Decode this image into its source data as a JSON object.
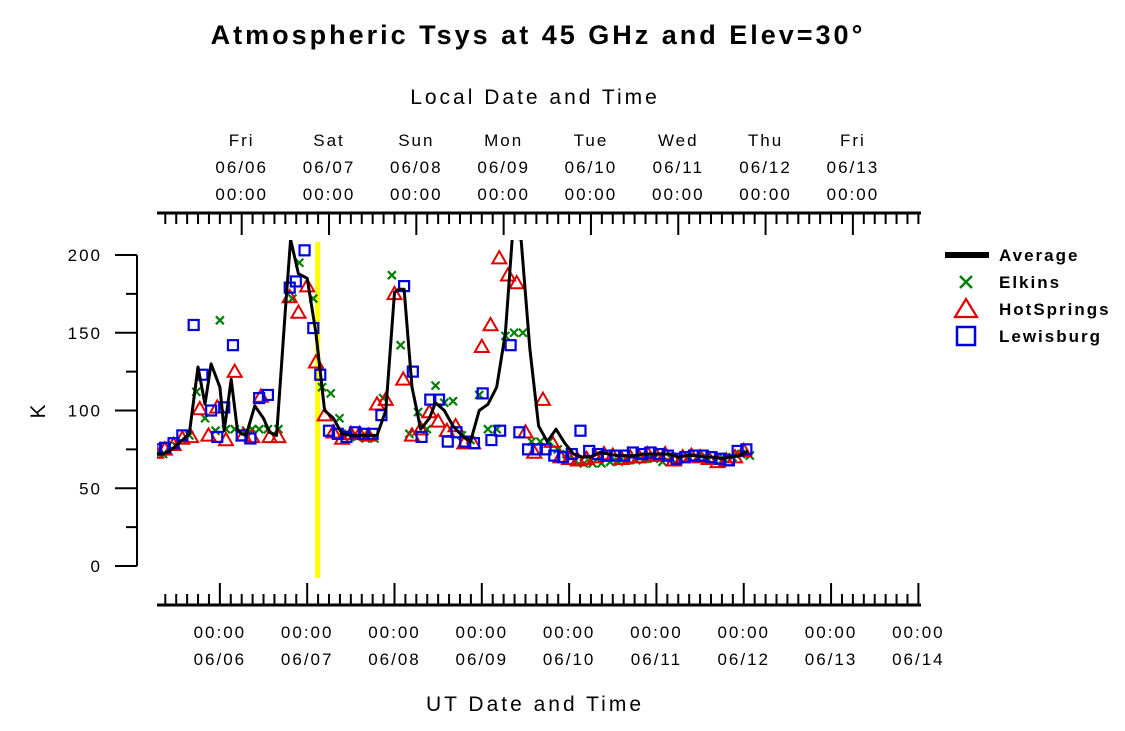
{
  "chart_data": {
    "type": "line",
    "title": "Atmospheric Tsys at 45 GHz and Elev=30°",
    "top_axis_title": "Local Date and Time",
    "xlabel": "UT Date and Time",
    "ylabel": "K",
    "ylim": [
      0,
      200
    ],
    "y_ticks": [
      0,
      50,
      100,
      150,
      200
    ],
    "xlim_ut_days": [
      5.03,
      13.78
    ],
    "top_axis_ticks": [
      {
        "day": "Fri",
        "date": "06/06",
        "time": "00:00",
        "ut_day": 6.0
      },
      {
        "day": "Sat",
        "date": "06/07",
        "time": "00:00",
        "ut_day": 7.0
      },
      {
        "day": "Sun",
        "date": "06/08",
        "time": "00:00",
        "ut_day": 8.0
      },
      {
        "day": "Mon",
        "date": "06/09",
        "time": "00:00",
        "ut_day": 9.0
      },
      {
        "day": "Tue",
        "date": "06/10",
        "time": "00:00",
        "ut_day": 10.0
      },
      {
        "day": "Wed",
        "date": "06/11",
        "time": "00:00",
        "ut_day": 11.0
      },
      {
        "day": "Thu",
        "date": "06/12",
        "time": "00:00",
        "ut_day": 12.0
      },
      {
        "day": "Fri",
        "date": "06/13",
        "time": "00:00",
        "ut_day": 13.0
      }
    ],
    "bottom_axis_ticks": [
      {
        "time": "00:00",
        "date": "06/06",
        "ut_day": 5.75
      },
      {
        "time": "00:00",
        "date": "06/07",
        "ut_day": 6.75
      },
      {
        "time": "00:00",
        "date": "06/08",
        "ut_day": 7.75
      },
      {
        "time": "00:00",
        "date": "06/09",
        "ut_day": 8.75
      },
      {
        "time": "00:00",
        "date": "06/10",
        "ut_day": 9.75
      },
      {
        "time": "00:00",
        "date": "06/11",
        "ut_day": 10.75
      },
      {
        "time": "00:00",
        "date": "06/12",
        "ut_day": 11.75
      },
      {
        "time": "00:00",
        "date": "06/13",
        "ut_day": 12.75
      },
      {
        "time": "00:00",
        "date": "06/14",
        "ut_day": 13.75
      }
    ],
    "marker_line_ut_day": 6.87,
    "legend_position": "right",
    "series": [
      {
        "name": "Average",
        "marker": "line",
        "color": "#000000",
        "points": [
          [
            5.0,
            72
          ],
          [
            5.1,
            72
          ],
          [
            5.2,
            75
          ],
          [
            5.3,
            80
          ],
          [
            5.4,
            85
          ],
          [
            5.5,
            128
          ],
          [
            5.58,
            104
          ],
          [
            5.65,
            130
          ],
          [
            5.75,
            115
          ],
          [
            5.8,
            87
          ],
          [
            5.88,
            120
          ],
          [
            5.95,
            88
          ],
          [
            6.0,
            85
          ],
          [
            6.05,
            84
          ],
          [
            6.15,
            103
          ],
          [
            6.25,
            95
          ],
          [
            6.32,
            86
          ],
          [
            6.4,
            84
          ],
          [
            6.5,
            165
          ],
          [
            6.56,
            210
          ],
          [
            6.65,
            188
          ],
          [
            6.75,
            185
          ],
          [
            6.85,
            150
          ],
          [
            6.95,
            100
          ],
          [
            7.05,
            95
          ],
          [
            7.15,
            85
          ],
          [
            7.25,
            84
          ],
          [
            7.35,
            84
          ],
          [
            7.45,
            84
          ],
          [
            7.55,
            84
          ],
          [
            7.65,
            100
          ],
          [
            7.75,
            176
          ],
          [
            7.8,
            178
          ],
          [
            7.86,
            178
          ],
          [
            7.95,
            115
          ],
          [
            8.05,
            88
          ],
          [
            8.15,
            95
          ],
          [
            8.22,
            105
          ],
          [
            8.32,
            100
          ],
          [
            8.42,
            90
          ],
          [
            8.52,
            84
          ],
          [
            8.62,
            80
          ],
          [
            8.72,
            100
          ],
          [
            8.82,
            104
          ],
          [
            8.92,
            115
          ],
          [
            9.02,
            150
          ],
          [
            9.1,
            212
          ],
          [
            9.2,
            210
          ],
          [
            9.3,
            140
          ],
          [
            9.4,
            90
          ],
          [
            9.5,
            80
          ],
          [
            9.6,
            88
          ],
          [
            9.7,
            79
          ],
          [
            9.8,
            72
          ],
          [
            9.9,
            70
          ],
          [
            10.0,
            70
          ],
          [
            10.1,
            73
          ],
          [
            10.2,
            72
          ],
          [
            10.3,
            71
          ],
          [
            10.4,
            71
          ],
          [
            10.5,
            71
          ],
          [
            10.6,
            72
          ],
          [
            10.7,
            72
          ],
          [
            10.8,
            72
          ],
          [
            10.9,
            72
          ],
          [
            11.0,
            70
          ],
          [
            11.1,
            71
          ],
          [
            11.2,
            71
          ],
          [
            11.3,
            70
          ],
          [
            11.4,
            70
          ],
          [
            11.5,
            69
          ],
          [
            11.6,
            70
          ],
          [
            11.7,
            71
          ],
          [
            11.8,
            74
          ]
        ]
      },
      {
        "name": "Elkins",
        "marker": "x",
        "color": "#008000",
        "points": [
          [
            5.0,
            72
          ],
          [
            5.05,
            72
          ],
          [
            5.1,
            72
          ],
          [
            5.25,
            77
          ],
          [
            5.4,
            84
          ],
          [
            5.48,
            112
          ],
          [
            5.58,
            95
          ],
          [
            5.7,
            87
          ],
          [
            5.75,
            158
          ],
          [
            5.82,
            88
          ],
          [
            5.92,
            88
          ],
          [
            6.05,
            87
          ],
          [
            6.12,
            88
          ],
          [
            6.2,
            88
          ],
          [
            6.3,
            88
          ],
          [
            6.42,
            88
          ],
          [
            6.58,
            172
          ],
          [
            6.66,
            195
          ],
          [
            6.82,
            172
          ],
          [
            6.92,
            115
          ],
          [
            7.02,
            111
          ],
          [
            7.12,
            95
          ],
          [
            7.22,
            85
          ],
          [
            7.32,
            83
          ],
          [
            7.42,
            82
          ],
          [
            7.52,
            82
          ],
          [
            7.62,
            108
          ],
          [
            7.72,
            187
          ],
          [
            7.82,
            142
          ],
          [
            7.92,
            85
          ],
          [
            8.02,
            99
          ],
          [
            8.12,
            88
          ],
          [
            8.22,
            116
          ],
          [
            8.32,
            105
          ],
          [
            8.42,
            106
          ],
          [
            8.52,
            84
          ],
          [
            8.62,
            81
          ],
          [
            8.72,
            110
          ],
          [
            8.82,
            88
          ],
          [
            8.92,
            88
          ],
          [
            9.02,
            148
          ],
          [
            9.12,
            150
          ],
          [
            9.22,
            150
          ],
          [
            9.32,
            80
          ],
          [
            9.42,
            80
          ],
          [
            9.52,
            80
          ],
          [
            9.62,
            75
          ],
          [
            9.72,
            72
          ],
          [
            9.82,
            68
          ],
          [
            9.92,
            66
          ],
          [
            10.02,
            66
          ],
          [
            10.12,
            66
          ],
          [
            10.22,
            67
          ],
          [
            10.32,
            67
          ],
          [
            10.42,
            68
          ],
          [
            10.52,
            68
          ],
          [
            10.62,
            69
          ],
          [
            10.72,
            69
          ],
          [
            10.82,
            67
          ],
          [
            10.92,
            69
          ],
          [
            11.02,
            69
          ],
          [
            11.12,
            70
          ],
          [
            11.22,
            70
          ],
          [
            11.32,
            70
          ],
          [
            11.42,
            68
          ],
          [
            11.52,
            69
          ],
          [
            11.62,
            70
          ],
          [
            11.72,
            72
          ],
          [
            11.82,
            71
          ]
        ]
      },
      {
        "name": "HotSprings",
        "marker": "triangle",
        "color": "#e00000",
        "points": [
          [
            5.02,
            73
          ],
          [
            5.12,
            75
          ],
          [
            5.22,
            78
          ],
          [
            5.32,
            82
          ],
          [
            5.42,
            83
          ],
          [
            5.52,
            101
          ],
          [
            5.62,
            84
          ],
          [
            5.72,
            102
          ],
          [
            5.82,
            81
          ],
          [
            5.92,
            125
          ],
          [
            6.02,
            84
          ],
          [
            6.12,
            83
          ],
          [
            6.22,
            109
          ],
          [
            6.32,
            83
          ],
          [
            6.42,
            83
          ],
          [
            6.55,
            173
          ],
          [
            6.65,
            163
          ],
          [
            6.75,
            180
          ],
          [
            6.85,
            131
          ],
          [
            6.95,
            97
          ],
          [
            7.05,
            86
          ],
          [
            7.15,
            82
          ],
          [
            7.25,
            85
          ],
          [
            7.35,
            85
          ],
          [
            7.45,
            84
          ],
          [
            7.55,
            104
          ],
          [
            7.65,
            107
          ],
          [
            7.75,
            175
          ],
          [
            7.85,
            120
          ],
          [
            7.95,
            84
          ],
          [
            8.05,
            88
          ],
          [
            8.15,
            99
          ],
          [
            8.25,
            93
          ],
          [
            8.35,
            87
          ],
          [
            8.45,
            90
          ],
          [
            8.55,
            79
          ],
          [
            8.65,
            79
          ],
          [
            8.75,
            141
          ],
          [
            8.85,
            155
          ],
          [
            8.95,
            198
          ],
          [
            9.05,
            187
          ],
          [
            9.15,
            182
          ],
          [
            9.25,
            86
          ],
          [
            9.35,
            73
          ],
          [
            9.45,
            107
          ],
          [
            9.55,
            80
          ],
          [
            9.65,
            70
          ],
          [
            9.75,
            69
          ],
          [
            9.85,
            68
          ],
          [
            9.95,
            69
          ],
          [
            10.05,
            70
          ],
          [
            10.15,
            72
          ],
          [
            10.25,
            71
          ],
          [
            10.35,
            69
          ],
          [
            10.45,
            70
          ],
          [
            10.55,
            70
          ],
          [
            10.65,
            72
          ],
          [
            10.75,
            71
          ],
          [
            10.85,
            72
          ],
          [
            10.95,
            68
          ],
          [
            11.05,
            70
          ],
          [
            11.15,
            71
          ],
          [
            11.25,
            70
          ],
          [
            11.35,
            69
          ],
          [
            11.45,
            67
          ],
          [
            11.55,
            68
          ],
          [
            11.65,
            70
          ],
          [
            11.75,
            74
          ]
        ]
      },
      {
        "name": "Lewisburg",
        "marker": "square",
        "color": "#0000e0",
        "points": [
          [
            5.02,
            75
          ],
          [
            5.12,
            76
          ],
          [
            5.22,
            79
          ],
          [
            5.32,
            84
          ],
          [
            5.45,
            155
          ],
          [
            5.55,
            123
          ],
          [
            5.65,
            100
          ],
          [
            5.72,
            83
          ],
          [
            5.8,
            102
          ],
          [
            5.9,
            142
          ],
          [
            6.0,
            84
          ],
          [
            6.1,
            82
          ],
          [
            6.2,
            108
          ],
          [
            6.3,
            110
          ],
          [
            6.55,
            179
          ],
          [
            6.62,
            183
          ],
          [
            6.72,
            203
          ],
          [
            6.82,
            153
          ],
          [
            6.9,
            123
          ],
          [
            7.0,
            87
          ],
          [
            7.1,
            85
          ],
          [
            7.2,
            83
          ],
          [
            7.3,
            86
          ],
          [
            7.4,
            85
          ],
          [
            7.5,
            85
          ],
          [
            7.6,
            97
          ],
          [
            7.86,
            180
          ],
          [
            7.96,
            125
          ],
          [
            8.06,
            83
          ],
          [
            8.16,
            107
          ],
          [
            8.26,
            107
          ],
          [
            8.36,
            80
          ],
          [
            8.46,
            86
          ],
          [
            8.56,
            80
          ],
          [
            8.66,
            79
          ],
          [
            8.76,
            111
          ],
          [
            8.86,
            81
          ],
          [
            8.96,
            87
          ],
          [
            9.08,
            142
          ],
          [
            9.18,
            86
          ],
          [
            9.28,
            75
          ],
          [
            9.38,
            75
          ],
          [
            9.48,
            75
          ],
          [
            9.58,
            71
          ],
          [
            9.68,
            70
          ],
          [
            9.78,
            72
          ],
          [
            9.88,
            87
          ],
          [
            9.98,
            74
          ],
          [
            10.08,
            72
          ],
          [
            10.18,
            71
          ],
          [
            10.28,
            71
          ],
          [
            10.38,
            71
          ],
          [
            10.48,
            73
          ],
          [
            10.58,
            72
          ],
          [
            10.68,
            73
          ],
          [
            10.78,
            72
          ],
          [
            10.88,
            71
          ],
          [
            10.98,
            69
          ],
          [
            11.08,
            70
          ],
          [
            11.18,
            71
          ],
          [
            11.28,
            71
          ],
          [
            11.38,
            70
          ],
          [
            11.48,
            69
          ],
          [
            11.58,
            68
          ],
          [
            11.68,
            74
          ],
          [
            11.78,
            75
          ]
        ]
      }
    ]
  }
}
